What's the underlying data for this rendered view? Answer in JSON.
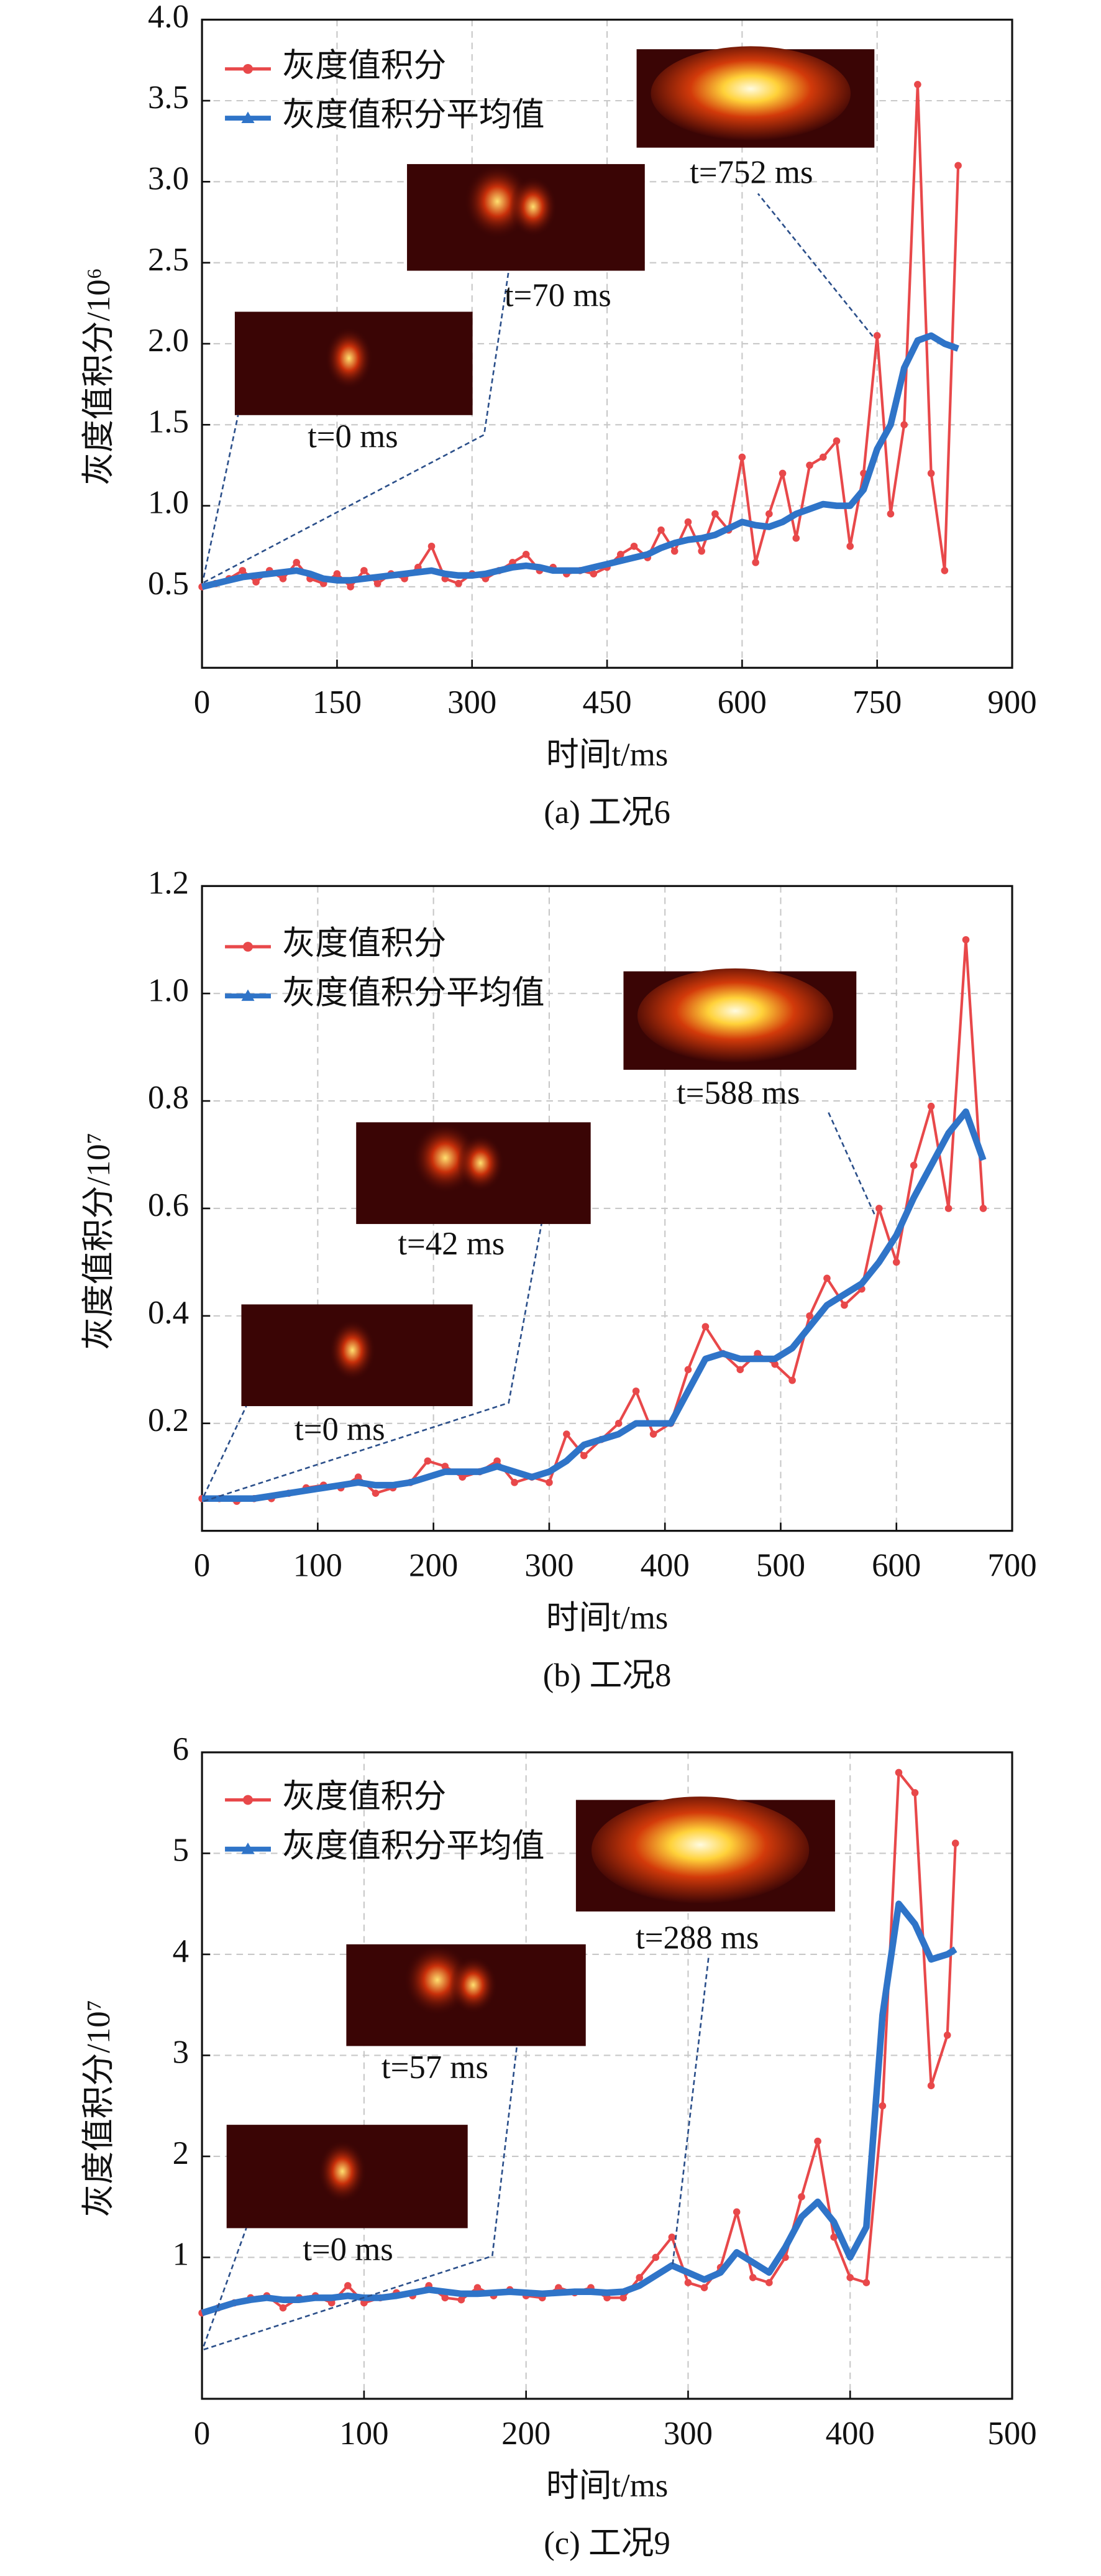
{
  "chart_data": [
    {
      "type": "line",
      "caption": "(a) 工况6",
      "xlabel": "时间t/ms",
      "ylabel": "灰度值积分/10⁶",
      "annotations": [
        "t=0 ms",
        "t=70 ms",
        "t=752 ms"
      ],
      "x": [
        0,
        15,
        30,
        45,
        60,
        75,
        90,
        105,
        120,
        135,
        150,
        165,
        180,
        195,
        210,
        225,
        240,
        255,
        270,
        285,
        300,
        315,
        330,
        345,
        360,
        375,
        390,
        405,
        420,
        435,
        450,
        465,
        480,
        495,
        510,
        525,
        540,
        555,
        570,
        585,
        600,
        615,
        630,
        645,
        660,
        675,
        690,
        705,
        720,
        735,
        750,
        765,
        780,
        795,
        810,
        825,
        840
      ],
      "series": [
        {
          "name": "灰度值积分",
          "color": "#e8484a",
          "values": [
            0.5,
            0.52,
            0.55,
            0.6,
            0.53,
            0.6,
            0.55,
            0.65,
            0.55,
            0.52,
            0.58,
            0.5,
            0.6,
            0.52,
            0.58,
            0.55,
            0.62,
            0.75,
            0.55,
            0.52,
            0.58,
            0.55,
            0.6,
            0.65,
            0.7,
            0.6,
            0.62,
            0.58,
            0.6,
            0.58,
            0.62,
            0.7,
            0.75,
            0.68,
            0.85,
            0.72,
            0.9,
            0.72,
            0.95,
            0.85,
            1.3,
            0.65,
            0.95,
            1.2,
            0.8,
            1.25,
            1.3,
            1.4,
            0.75,
            1.2,
            2.05,
            0.95,
            1.5,
            3.6,
            1.2,
            0.6,
            3.1
          ]
        },
        {
          "name": "灰度值积分平均值",
          "color": "#2f74c8",
          "values": [
            0.5,
            0.52,
            0.54,
            0.56,
            0.57,
            0.58,
            0.59,
            0.6,
            0.58,
            0.55,
            0.54,
            0.54,
            0.55,
            0.56,
            0.57,
            0.58,
            0.59,
            0.6,
            0.58,
            0.57,
            0.57,
            0.58,
            0.6,
            0.62,
            0.63,
            0.62,
            0.6,
            0.6,
            0.6,
            0.62,
            0.64,
            0.66,
            0.68,
            0.7,
            0.74,
            0.77,
            0.79,
            0.8,
            0.82,
            0.86,
            0.9,
            0.88,
            0.87,
            0.9,
            0.95,
            0.98,
            1.01,
            1.0,
            1.0,
            1.1,
            1.35,
            1.5,
            1.85,
            2.02,
            2.05,
            2.0,
            1.97
          ]
        }
      ],
      "xlim": [
        0,
        900
      ],
      "xticks": [
        0,
        150,
        300,
        450,
        600,
        750,
        900
      ],
      "ylim": [
        0,
        4
      ],
      "yticks": [
        0.5,
        {
          "value": 1,
          "label": "1.0"
        },
        1.5,
        {
          "value": 2,
          "label": "2.0"
        },
        2.5,
        {
          "value": 3,
          "label": "3.0"
        },
        3.5,
        {
          "value": 4,
          "label": "4.0"
        }
      ],
      "grid": true
    },
    {
      "type": "line",
      "caption": "(b) 工况8",
      "xlabel": "时间t/ms",
      "ylabel": "灰度值积分/10⁷",
      "annotations": [
        "t=0 ms",
        "t=42 ms",
        "t=588 ms"
      ],
      "x": [
        0,
        15,
        30,
        45,
        60,
        75,
        90,
        105,
        120,
        135,
        150,
        165,
        180,
        195,
        210,
        225,
        240,
        255,
        270,
        285,
        300,
        315,
        330,
        345,
        360,
        375,
        390,
        405,
        420,
        435,
        450,
        465,
        480,
        495,
        510,
        525,
        540,
        555,
        570,
        585,
        600,
        615,
        630,
        645,
        660,
        675
      ],
      "series": [
        {
          "name": "灰度值积分",
          "color": "#e8484a",
          "values": [
            0.06,
            0.06,
            0.055,
            0.06,
            0.06,
            0.07,
            0.08,
            0.085,
            0.08,
            0.1,
            0.07,
            0.08,
            0.09,
            0.13,
            0.12,
            0.1,
            0.11,
            0.13,
            0.09,
            0.1,
            0.09,
            0.18,
            0.14,
            0.17,
            0.2,
            0.26,
            0.18,
            0.2,
            0.3,
            0.38,
            0.33,
            0.3,
            0.33,
            0.31,
            0.28,
            0.4,
            0.47,
            0.42,
            0.45,
            0.6,
            0.5,
            0.68,
            0.79,
            0.6,
            1.1,
            0.6
          ]
        },
        {
          "name": "灰度值积分平均值",
          "color": "#2f74c8",
          "values": [
            0.06,
            0.06,
            0.06,
            0.06,
            0.065,
            0.07,
            0.075,
            0.08,
            0.085,
            0.09,
            0.085,
            0.085,
            0.09,
            0.1,
            0.11,
            0.11,
            0.11,
            0.12,
            0.11,
            0.1,
            0.11,
            0.13,
            0.16,
            0.17,
            0.18,
            0.2,
            0.2,
            0.2,
            0.26,
            0.32,
            0.33,
            0.32,
            0.32,
            0.32,
            0.34,
            0.38,
            0.42,
            0.44,
            0.46,
            0.5,
            0.55,
            0.62,
            0.68,
            0.74,
            0.78,
            0.69
          ]
        }
      ],
      "xlim": [
        0,
        700
      ],
      "xticks": [
        0,
        100,
        200,
        300,
        400,
        500,
        600,
        700
      ],
      "ylim": [
        0,
        1.2
      ],
      "yticks": [
        0.2,
        0.4,
        0.6,
        0.8,
        {
          "value": 1,
          "label": "1.0"
        },
        1.2
      ],
      "grid": true
    },
    {
      "type": "line",
      "caption": "(c) 工况9",
      "xlabel": "时间t/ms",
      "ylabel": "灰度值积分/10⁷",
      "annotations": [
        "t=0 ms",
        "t=57 ms",
        "t=288 ms"
      ],
      "x": [
        0,
        10,
        20,
        30,
        40,
        50,
        60,
        70,
        80,
        90,
        100,
        110,
        120,
        130,
        140,
        150,
        160,
        170,
        180,
        190,
        200,
        210,
        220,
        230,
        240,
        250,
        260,
        270,
        280,
        290,
        300,
        310,
        320,
        330,
        340,
        350,
        360,
        370,
        380,
        390,
        400,
        410,
        420,
        430,
        440,
        450,
        460,
        465
      ],
      "series": [
        {
          "name": "灰度值积分",
          "color": "#e8484a",
          "values": [
            0.45,
            0.5,
            0.55,
            0.6,
            0.62,
            0.5,
            0.6,
            0.62,
            0.55,
            0.72,
            0.55,
            0.6,
            0.65,
            0.62,
            0.72,
            0.6,
            0.58,
            0.7,
            0.62,
            0.68,
            0.62,
            0.6,
            0.7,
            0.65,
            0.7,
            0.6,
            0.6,
            0.8,
            1.0,
            1.2,
            0.75,
            0.7,
            0.9,
            1.45,
            0.8,
            0.75,
            1.0,
            1.6,
            2.15,
            1.2,
            0.8,
            0.75,
            2.5,
            5.8,
            5.6,
            2.7,
            3.2,
            5.1
          ]
        },
        {
          "name": "灰度值积分平均值",
          "color": "#2f74c8",
          "values": [
            0.45,
            0.5,
            0.55,
            0.58,
            0.6,
            0.58,
            0.58,
            0.6,
            0.6,
            0.62,
            0.6,
            0.6,
            0.62,
            0.65,
            0.68,
            0.66,
            0.64,
            0.64,
            0.65,
            0.66,
            0.65,
            0.64,
            0.65,
            0.66,
            0.66,
            0.65,
            0.66,
            0.72,
            0.82,
            0.92,
            0.85,
            0.78,
            0.85,
            1.05,
            0.95,
            0.85,
            1.1,
            1.4,
            1.55,
            1.35,
            1.0,
            1.3,
            3.4,
            4.5,
            4.3,
            3.95,
            4.0,
            4.05
          ]
        }
      ],
      "xlim": [
        0,
        500
      ],
      "xticks": [
        0,
        100,
        200,
        300,
        400,
        500
      ],
      "ylim": [
        -0.4,
        6
      ],
      "yticks": [
        1,
        2,
        3,
        4,
        5,
        6
      ],
      "grid": true
    }
  ]
}
